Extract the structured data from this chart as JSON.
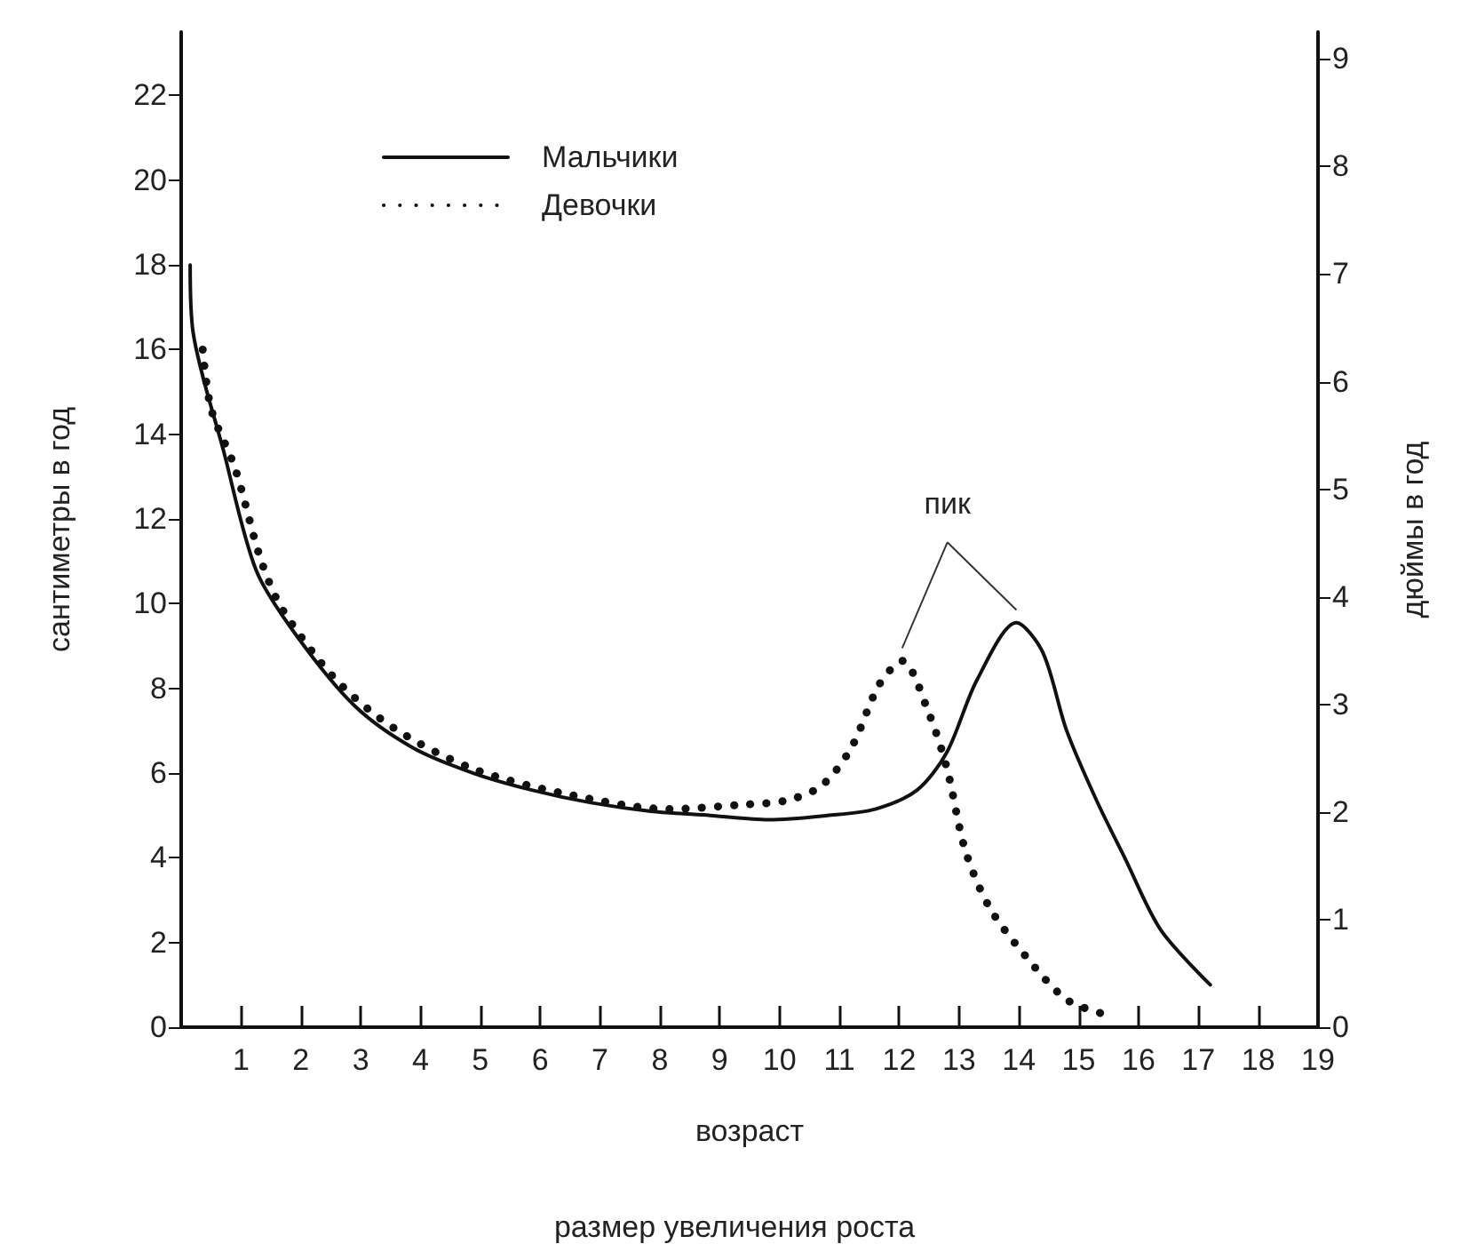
{
  "chart_data": {
    "type": "line",
    "xlabel": "возраст",
    "ylabel": "сантиметры в год",
    "y2label": "дюймы в год",
    "annotations": [
      "пик",
      "размер увеличения роста"
    ],
    "xlim": [
      0,
      19
    ],
    "xticks": [
      1,
      2,
      3,
      4,
      5,
      6,
      7,
      8,
      9,
      10,
      11,
      12,
      13,
      14,
      15,
      16,
      17,
      18,
      19
    ],
    "ylim": [
      0,
      23.5
    ],
    "yticks": [
      0,
      2,
      4,
      6,
      8,
      10,
      12,
      14,
      16,
      18,
      20,
      22
    ],
    "y2lim": [
      0,
      9.25
    ],
    "y2ticks": [
      0,
      1,
      2,
      3,
      4,
      5,
      6,
      7,
      8,
      9
    ],
    "grid": false,
    "legend": "top left",
    "marker": "none",
    "series": [
      {
        "name": "Мальчики",
        "color": "#111111",
        "line_style": "solid",
        "x": [
          0.15,
          0.2,
          0.71,
          1.25,
          1.9,
          2.89,
          3.87,
          4.88,
          5.86,
          6.85,
          7.85,
          8.84,
          9.82,
          10.8,
          11.6,
          12.3,
          12.8,
          13.3,
          13.96,
          14.4,
          14.8,
          15.3,
          15.77,
          16.37,
          17.2
        ],
        "values": [
          18.0,
          16.4,
          13.6,
          10.8,
          9.3,
          7.6,
          6.6,
          6.0,
          5.6,
          5.3,
          5.1,
          5.0,
          4.9,
          5.0,
          5.15,
          5.6,
          6.5,
          8.2,
          9.55,
          8.85,
          7.0,
          5.35,
          4.0,
          2.3,
          1.0
        ]
      },
      {
        "name": "Девочки",
        "color": "#111111",
        "line_style": "dotted",
        "x": [
          0.36,
          0.5,
          0.9,
          1.34,
          1.7,
          2.59,
          3.57,
          4.88,
          6.46,
          8.15,
          9.34,
          10.1,
          10.7,
          11.2,
          11.67,
          12.05,
          12.5,
          12.8,
          13.1,
          13.5,
          14.1,
          14.8,
          15.45
        ],
        "values": [
          16.0,
          14.6,
          13.2,
          11.0,
          9.85,
          8.2,
          7.05,
          6.1,
          5.5,
          5.15,
          5.25,
          5.35,
          5.7,
          6.6,
          8.1,
          8.65,
          7.4,
          6.1,
          4.2,
          2.85,
          1.7,
          0.65,
          0.3
        ]
      }
    ]
  }
}
